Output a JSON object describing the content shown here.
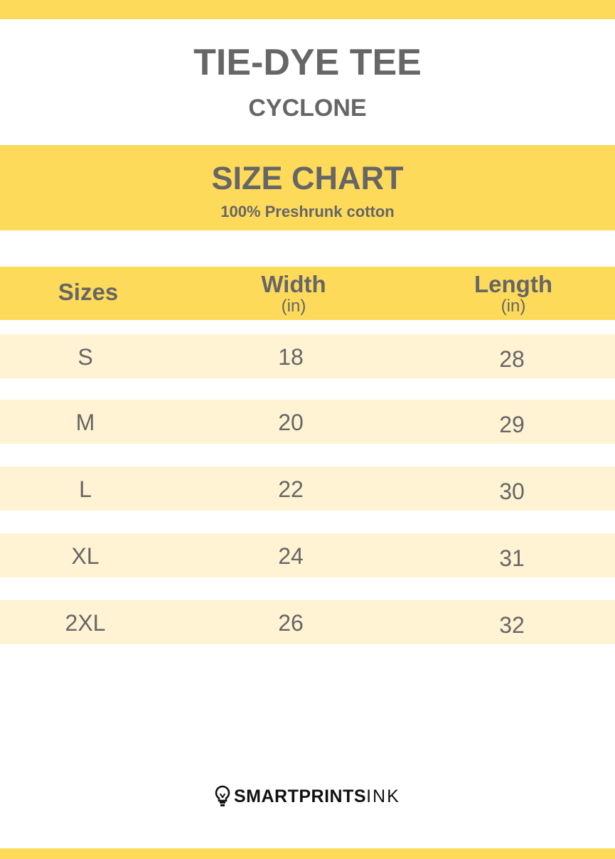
{
  "colors": {
    "accent": "#FDDA5A",
    "row": "#FFF3D3",
    "text": "#666666"
  },
  "header": {
    "title": "TIE-DYE TEE",
    "subtitle": "CYCLONE"
  },
  "chart": {
    "title": "SIZE CHART",
    "subtitle": "100% Preshrunk cotton"
  },
  "table": {
    "columns": [
      {
        "label": "Sizes",
        "unit": ""
      },
      {
        "label": "Width",
        "unit": "(in)"
      },
      {
        "label": "Length",
        "unit": "(in)"
      }
    ],
    "rows": [
      [
        "S",
        "18",
        "28"
      ],
      [
        "M",
        "20",
        "29"
      ],
      [
        "L",
        "22",
        "30"
      ],
      [
        "XL",
        "24",
        "31"
      ],
      [
        "2XL",
        "26",
        "32"
      ]
    ]
  },
  "footer": {
    "logo_bold": "SMARTPRINTS",
    "logo_light": "INK",
    "logo_icon": "lightbulb-icon"
  }
}
